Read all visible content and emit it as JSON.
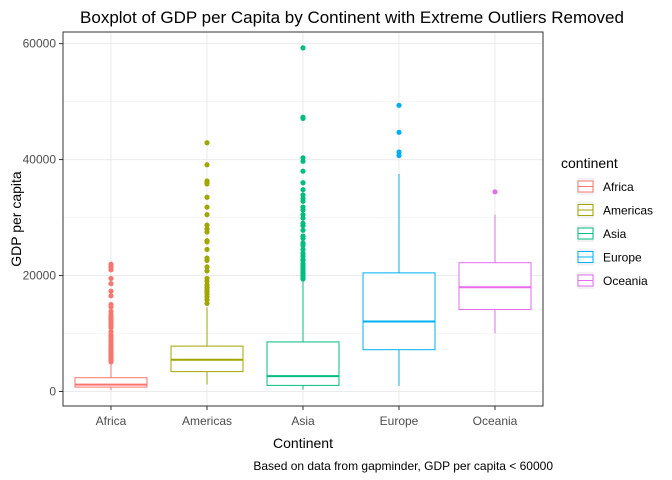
{
  "chart_data": {
    "type": "boxplot",
    "title": "Boxplot of GDP per Capita by Continent with Extreme Outliers Removed",
    "xlabel": "Continent",
    "ylabel": "GDP per capita",
    "caption": "Based on data from gapminder, GDP per capita < 60000",
    "categories": [
      "Africa",
      "Americas",
      "Asia",
      "Europe",
      "Oceania"
    ],
    "ylim": [
      -2500,
      62000
    ],
    "yticks": [
      0,
      20000,
      40000,
      60000
    ],
    "ytick_labels": [
      "0",
      "20000",
      "40000",
      "60000"
    ],
    "grid": true,
    "legend": {
      "title": "continent",
      "position": "right"
    },
    "series": [
      {
        "name": "Africa",
        "color": "#F8766D",
        "whisker_low": 241,
        "q1": 761,
        "median": 1192,
        "q3": 2378,
        "whisker_high": 4800,
        "outliers": [
          21950,
          21500,
          21000,
          19500,
          18600,
          17300,
          16500,
          15000,
          14600,
          13800,
          13200,
          12800,
          12500,
          12100,
          11700,
          11300,
          11000,
          10300,
          9700,
          9400,
          9000,
          8600,
          8200,
          7800,
          7500,
          7200,
          6900,
          6600,
          6300,
          6000,
          5700,
          5400,
          5100
        ]
      },
      {
        "name": "Americas",
        "color": "#A3A500",
        "whisker_low": 1202,
        "q1": 3428,
        "median": 5466,
        "q3": 7830,
        "whisker_high": 14500,
        "outliers": [
          42900,
          39100,
          36300,
          36000,
          35800,
          33500,
          31800,
          30500,
          28700,
          28000,
          27500,
          26000,
          25800,
          24500,
          23000,
          22600,
          21500,
          20800,
          19500,
          19000,
          18400,
          18000,
          17600,
          17200,
          16800,
          16300,
          15800,
          15200
        ]
      },
      {
        "name": "Asia",
        "color": "#00BF7D",
        "whisker_low": 331,
        "q1": 1057,
        "median": 2647,
        "q3": 8549,
        "whisker_high": 19000,
        "outliers": [
          59265,
          47300,
          47100,
          40300,
          39700,
          38000,
          36000,
          34800,
          33900,
          33300,
          32800,
          31800,
          31300,
          30500,
          29900,
          29000,
          28600,
          27800,
          26800,
          26400,
          25600,
          25200,
          24500,
          23800,
          23300,
          22800,
          22500,
          22000,
          21600,
          21200,
          20900,
          20600,
          20300,
          20000,
          19700,
          19400
        ]
      },
      {
        "name": "Europe",
        "color": "#00B0F6",
        "whisker_low": 974,
        "q1": 7213,
        "median": 12082,
        "q3": 20461,
        "whisker_high": 37500,
        "outliers": [
          49357,
          44700,
          41300,
          40700
        ]
      },
      {
        "name": "Oceania",
        "color": "#E76BF3",
        "whisker_low": 10040,
        "q1": 14142,
        "median": 17983,
        "q3": 22214,
        "whisker_high": 30500,
        "outliers": [
          34435
        ]
      }
    ]
  }
}
